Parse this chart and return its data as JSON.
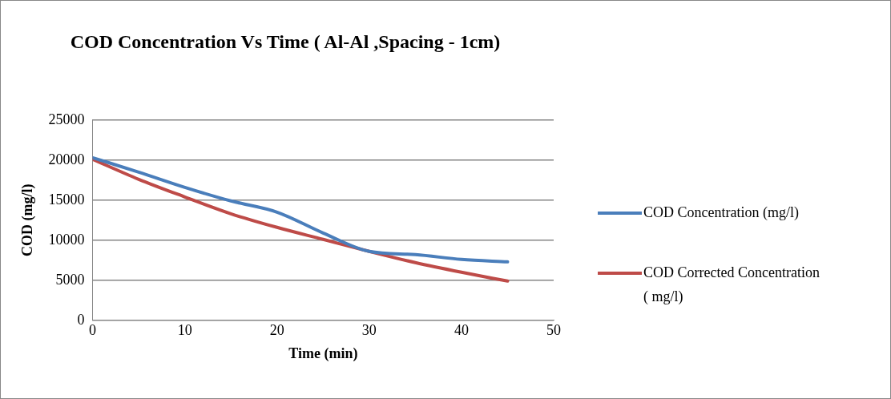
{
  "chart_data": {
    "type": "line",
    "title": "COD Concentration Vs Time ( Al-Al ,Spacing - 1cm)",
    "xlabel": "Time (min)",
    "ylabel": "COD (mg/l)",
    "x": [
      0,
      5,
      10,
      15,
      20,
      25,
      30,
      35,
      40,
      45
    ],
    "series": [
      {
        "name": "COD Concentration (mg/l)",
        "color": "#4a7ebb",
        "values": [
          20300,
          18500,
          16600,
          14900,
          13500,
          10900,
          8600,
          8200,
          7600,
          7300
        ]
      },
      {
        "name": "COD Corrected Concentration ( mg/l)",
        "color": "#be4b48",
        "values": [
          20100,
          17600,
          15400,
          13300,
          11600,
          10100,
          8600,
          7200,
          6000,
          4900
        ]
      }
    ],
    "xlim": [
      0,
      50
    ],
    "xticks": [
      0,
      10,
      20,
      30,
      40,
      50
    ],
    "ylim": [
      0,
      25000
    ],
    "yticks": [
      0,
      5000,
      10000,
      15000,
      20000,
      25000
    ],
    "grid": "y",
    "legend": "right",
    "marker": "none",
    "line_style": "solid"
  }
}
